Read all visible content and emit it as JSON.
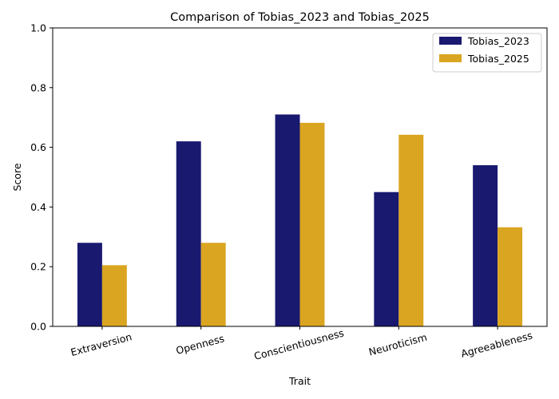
{
  "chart_data": {
    "type": "bar",
    "title": "Comparison of Tobias_2023 and Tobias_2025",
    "xlabel": "Trait",
    "ylabel": "Score",
    "ylim": [
      0,
      1.0
    ],
    "yticks": [
      "0.0",
      "0.2",
      "0.4",
      "0.6",
      "0.8",
      "1.0"
    ],
    "categories": [
      "Extraversion",
      "Openness",
      "Conscientiousness",
      "Neuroticism",
      "Agreeableness"
    ],
    "series": [
      {
        "name": "Tobias_2023",
        "color": "#191970",
        "values": [
          0.28,
          0.62,
          0.71,
          0.45,
          0.54
        ]
      },
      {
        "name": "Tobias_2025",
        "color": "#DAA520",
        "values": [
          0.205,
          0.28,
          0.682,
          0.642,
          0.332
        ]
      }
    ],
    "legend": "top-right",
    "grid": false
  }
}
